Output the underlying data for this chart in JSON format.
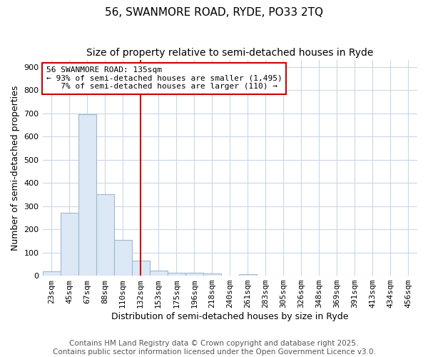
{
  "title": "56, SWANMORE ROAD, RYDE, PO33 2TQ",
  "subtitle": "Size of property relative to semi-detached houses in Ryde",
  "xlabel": "Distribution of semi-detached houses by size in Ryde",
  "ylabel": "Number of semi-detached properties",
  "bin_labels": [
    "23sqm",
    "45sqm",
    "67sqm",
    "88sqm",
    "110sqm",
    "132sqm",
    "153sqm",
    "175sqm",
    "196sqm",
    "218sqm",
    "240sqm",
    "261sqm",
    "283sqm",
    "305sqm",
    "326sqm",
    "348sqm",
    "369sqm",
    "391sqm",
    "413sqm",
    "434sqm",
    "456sqm"
  ],
  "bar_values": [
    20,
    270,
    695,
    350,
    155,
    65,
    22,
    12,
    12,
    8,
    0,
    6,
    0,
    0,
    0,
    0,
    0,
    0,
    0,
    0,
    0
  ],
  "bar_color": "#dce8f5",
  "bar_edge_color": "#a0b8d0",
  "vline_x": 5,
  "vline_color": "#cc0000",
  "annotation_text": "56 SWANMORE ROAD: 135sqm\n← 93% of semi-detached houses are smaller (1,495)\n   7% of semi-detached houses are larger (110) →",
  "annotation_box_color": "#ffffff",
  "annotation_box_edge": "#cc0000",
  "ylim": [
    0,
    930
  ],
  "yticks": [
    0,
    100,
    200,
    300,
    400,
    500,
    600,
    700,
    800,
    900
  ],
  "fig_background_color": "#ffffff",
  "plot_bg_color": "#ffffff",
  "grid_color": "#c8d8e8",
  "footer_text": "Contains HM Land Registry data © Crown copyright and database right 2025.\nContains public sector information licensed under the Open Government Licence v3.0.",
  "title_fontsize": 11,
  "subtitle_fontsize": 10,
  "axis_label_fontsize": 9,
  "tick_fontsize": 8,
  "annotation_fontsize": 8,
  "footer_fontsize": 7.5
}
